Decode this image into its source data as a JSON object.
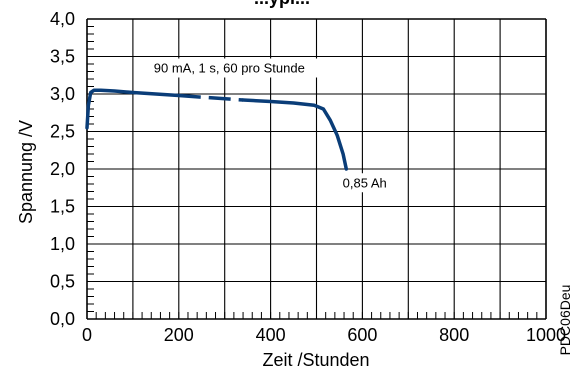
{
  "chart_data": {
    "type": "line",
    "title": "...ypi...",
    "xlabel": "Zeit /Stunden",
    "ylabel": "Spannung /V",
    "xlim": [
      0,
      1000
    ],
    "ylim": [
      0,
      4.0
    ],
    "x_ticks": [
      0,
      200,
      400,
      600,
      800,
      1000
    ],
    "x_tick_labels": [
      "0",
      "200",
      "400",
      "600",
      "800",
      "1000"
    ],
    "y_ticks": [
      0,
      0.5,
      1.0,
      1.5,
      2.0,
      2.5,
      3.0,
      3.5,
      4.0
    ],
    "y_tick_labels": [
      "0,0",
      "0,5",
      "1,0",
      "1,5",
      "2,0",
      "2,5",
      "3,0",
      "3,5",
      "4,0"
    ],
    "grid": true,
    "line_color": "#0a3d78",
    "series": [
      {
        "solid_points": [
          [
            0,
            2.55
          ],
          [
            3,
            2.85
          ],
          [
            8,
            3.02
          ],
          [
            15,
            3.05
          ],
          [
            30,
            3.05
          ],
          [
            60,
            3.04
          ],
          [
            100,
            3.02
          ],
          [
            150,
            3.0
          ],
          [
            200,
            2.98
          ]
        ],
        "dashed_points": [
          [
            200,
            2.98
          ],
          [
            270,
            2.95
          ],
          [
            340,
            2.92
          ]
        ],
        "solid_tail_points": [
          [
            340,
            2.92
          ],
          [
            400,
            2.9
          ],
          [
            450,
            2.88
          ],
          [
            495,
            2.85
          ],
          [
            515,
            2.8
          ],
          [
            530,
            2.65
          ],
          [
            545,
            2.45
          ],
          [
            558,
            2.2
          ],
          [
            565,
            2.0
          ]
        ]
      }
    ],
    "annotations": [
      {
        "text": "90 mA, 1 s, 60 pro Stunde",
        "x": 310,
        "y": 3.3
      },
      {
        "text": "0,85 Ah",
        "x": 605,
        "y": 1.77
      }
    ],
    "figure_code": "PDC06Deu"
  }
}
